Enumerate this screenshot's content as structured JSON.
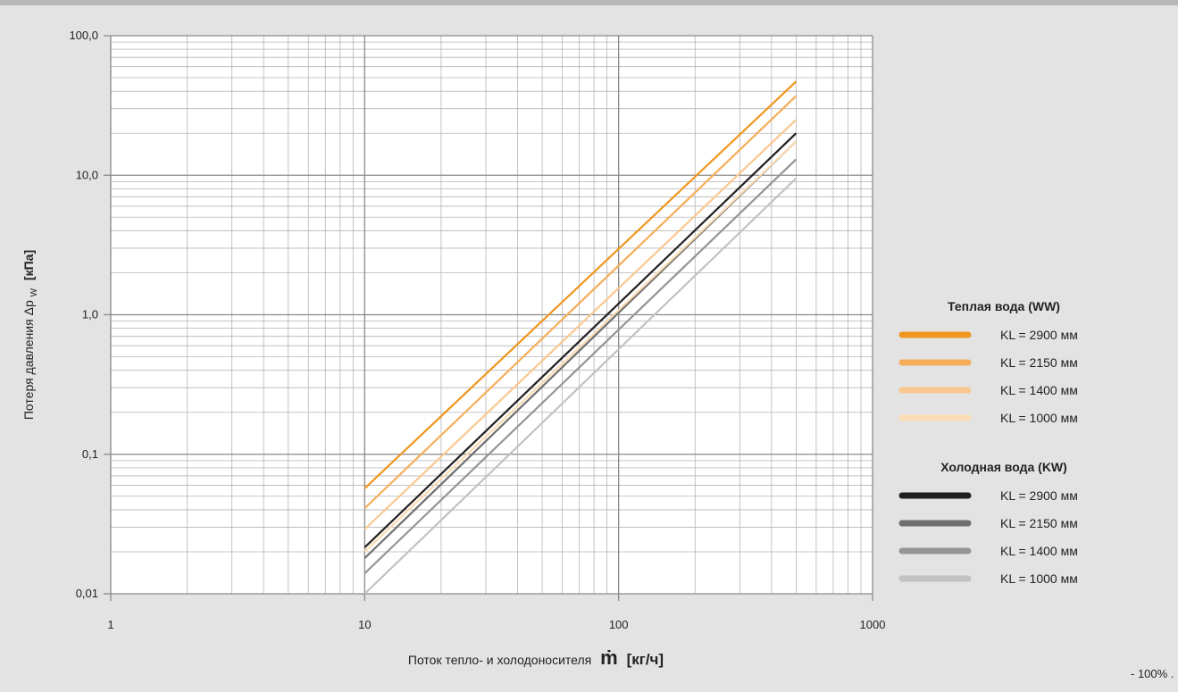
{
  "chart_data": {
    "type": "line",
    "x_scale": "log",
    "y_scale": "log",
    "xlim": [
      1,
      1000
    ],
    "ylim": [
      0.01,
      100
    ],
    "grid": true,
    "x_ticks": [
      "1",
      "10",
      "100",
      "1000"
    ],
    "y_ticks": [
      "0,01",
      "0,1",
      "1,0",
      "10,0",
      "100,0"
    ],
    "xlabel_prefix": "Поток тепло- и холодоносителя",
    "xlabel_symbol": "ṁ",
    "xlabel_unit": "[кг/ч]",
    "ylabel_prefix": "Потеря давления Δp",
    "ylabel_sub": "W",
    "ylabel_unit": "[кПа]",
    "legend_placement": "right",
    "legend_groups": [
      {
        "title": "Теплая вода (WW)"
      },
      {
        "title": "Холодная вода (KW)"
      }
    ],
    "series": [
      {
        "name": "KL = 2900 мм",
        "group": 0,
        "color": "#f0961e",
        "x": [
          10,
          500
        ],
        "y": [
          0.057,
          47
        ]
      },
      {
        "name": "KL = 2150 мм",
        "group": 0,
        "color": "#f6ad5a",
        "x": [
          10,
          500
        ],
        "y": [
          0.041,
          37
        ]
      },
      {
        "name": "KL = 1400 мм",
        "group": 0,
        "color": "#f9c790",
        "x": [
          10,
          500
        ],
        "y": [
          0.029,
          25
        ]
      },
      {
        "name": "KL = 1000 мм",
        "group": 0,
        "color": "#fbdcb4",
        "x": [
          10,
          500
        ],
        "y": [
          0.02,
          17.5
        ]
      },
      {
        "name": "KL = 2900 мм",
        "group": 1,
        "color": "#231f20",
        "x": [
          10,
          500
        ],
        "y": [
          0.0215,
          20
        ]
      },
      {
        "name": "KL = 2150 мм",
        "group": 1,
        "color": "#6f6f6f",
        "x": [
          10,
          500
        ],
        "y": [
          0.018,
          17.5
        ]
      },
      {
        "name": "KL = 1400 мм",
        "group": 1,
        "color": "#959595",
        "x": [
          10,
          500
        ],
        "y": [
          0.014,
          13
        ]
      },
      {
        "name": "KL = 1000 мм",
        "group": 1,
        "color": "#c2c2c2",
        "x": [
          10,
          500
        ],
        "y": [
          0.01,
          9.5
        ]
      }
    ]
  },
  "footer": {
    "zoom_note": "- 100%    ."
  }
}
